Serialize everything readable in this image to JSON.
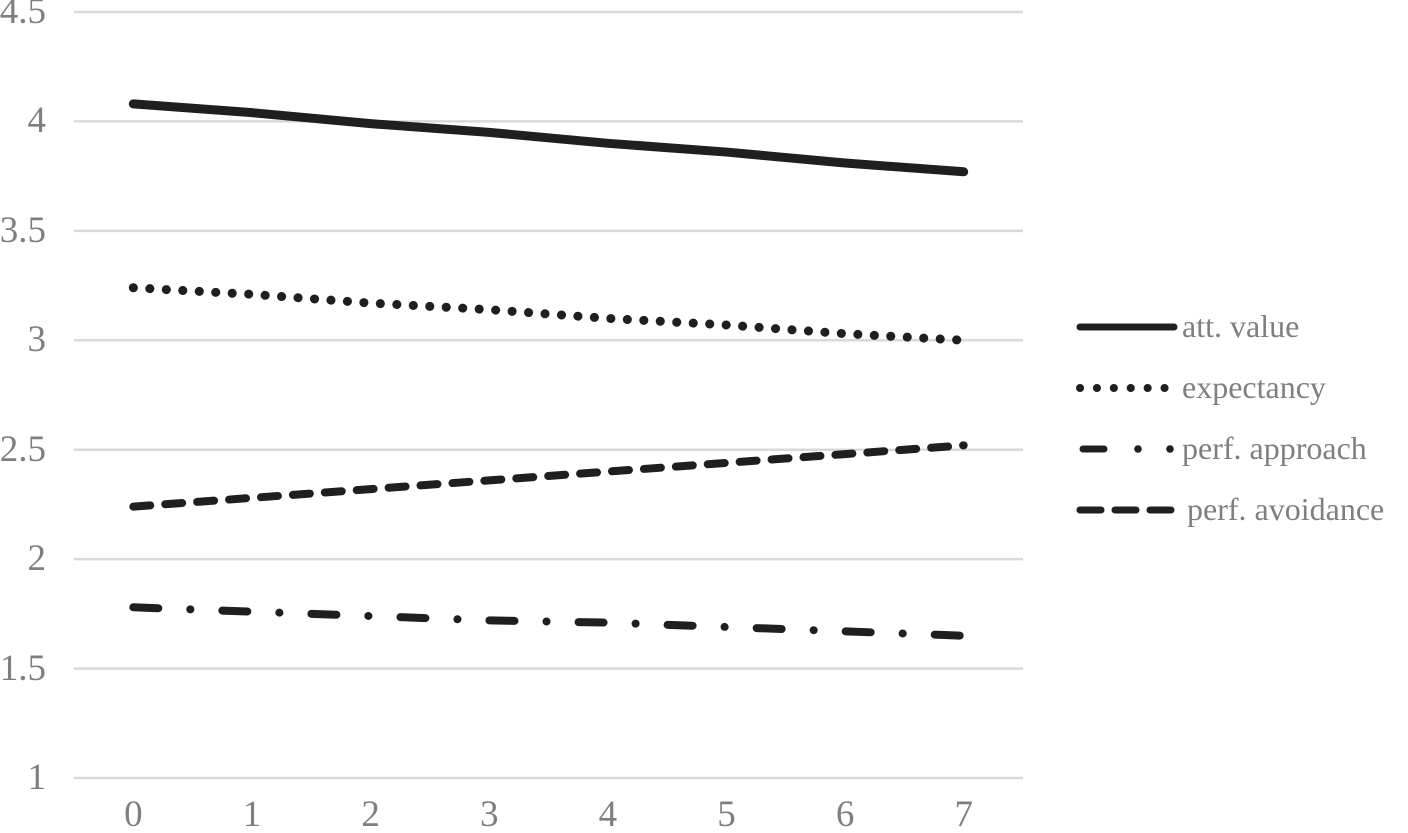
{
  "chart_data": {
    "type": "line",
    "title": "",
    "xlabel": "",
    "ylabel": "",
    "x_categories": [
      "0",
      "1",
      "2",
      "3",
      "4",
      "5",
      "6",
      "7"
    ],
    "y_tick_labels": [
      "4.5",
      "4",
      "3.5",
      "3",
      "2.5",
      "2",
      "1.5",
      "1"
    ],
    "y_tick_values": [
      4.5,
      4,
      3.5,
      3,
      2.5,
      2,
      1.5,
      1
    ],
    "ylim": [
      1,
      4.5
    ],
    "grid": "horizontal",
    "legend_position": "right",
    "series": [
      {
        "name": "att. value",
        "style": "solid",
        "values": [
          4.08,
          4.04,
          3.99,
          3.95,
          3.9,
          3.86,
          3.81,
          3.77
        ]
      },
      {
        "name": "expectancy",
        "style": "dotted",
        "values": [
          3.24,
          3.21,
          3.17,
          3.14,
          3.1,
          3.07,
          3.03,
          3.0
        ]
      },
      {
        "name": "perf. approach",
        "style": "dash-dot",
        "values": [
          1.78,
          1.76,
          1.74,
          1.72,
          1.71,
          1.69,
          1.67,
          1.65
        ]
      },
      {
        "name": "perf. avoidance",
        "style": "dashed",
        "values": [
          2.24,
          2.28,
          2.32,
          2.36,
          2.4,
          2.44,
          2.48,
          2.52
        ]
      }
    ],
    "colors": {
      "line": "#1f1f1f",
      "axis_text": "#7f7f7f",
      "gridline": "#d9d9d9",
      "background": "#ffffff"
    }
  }
}
